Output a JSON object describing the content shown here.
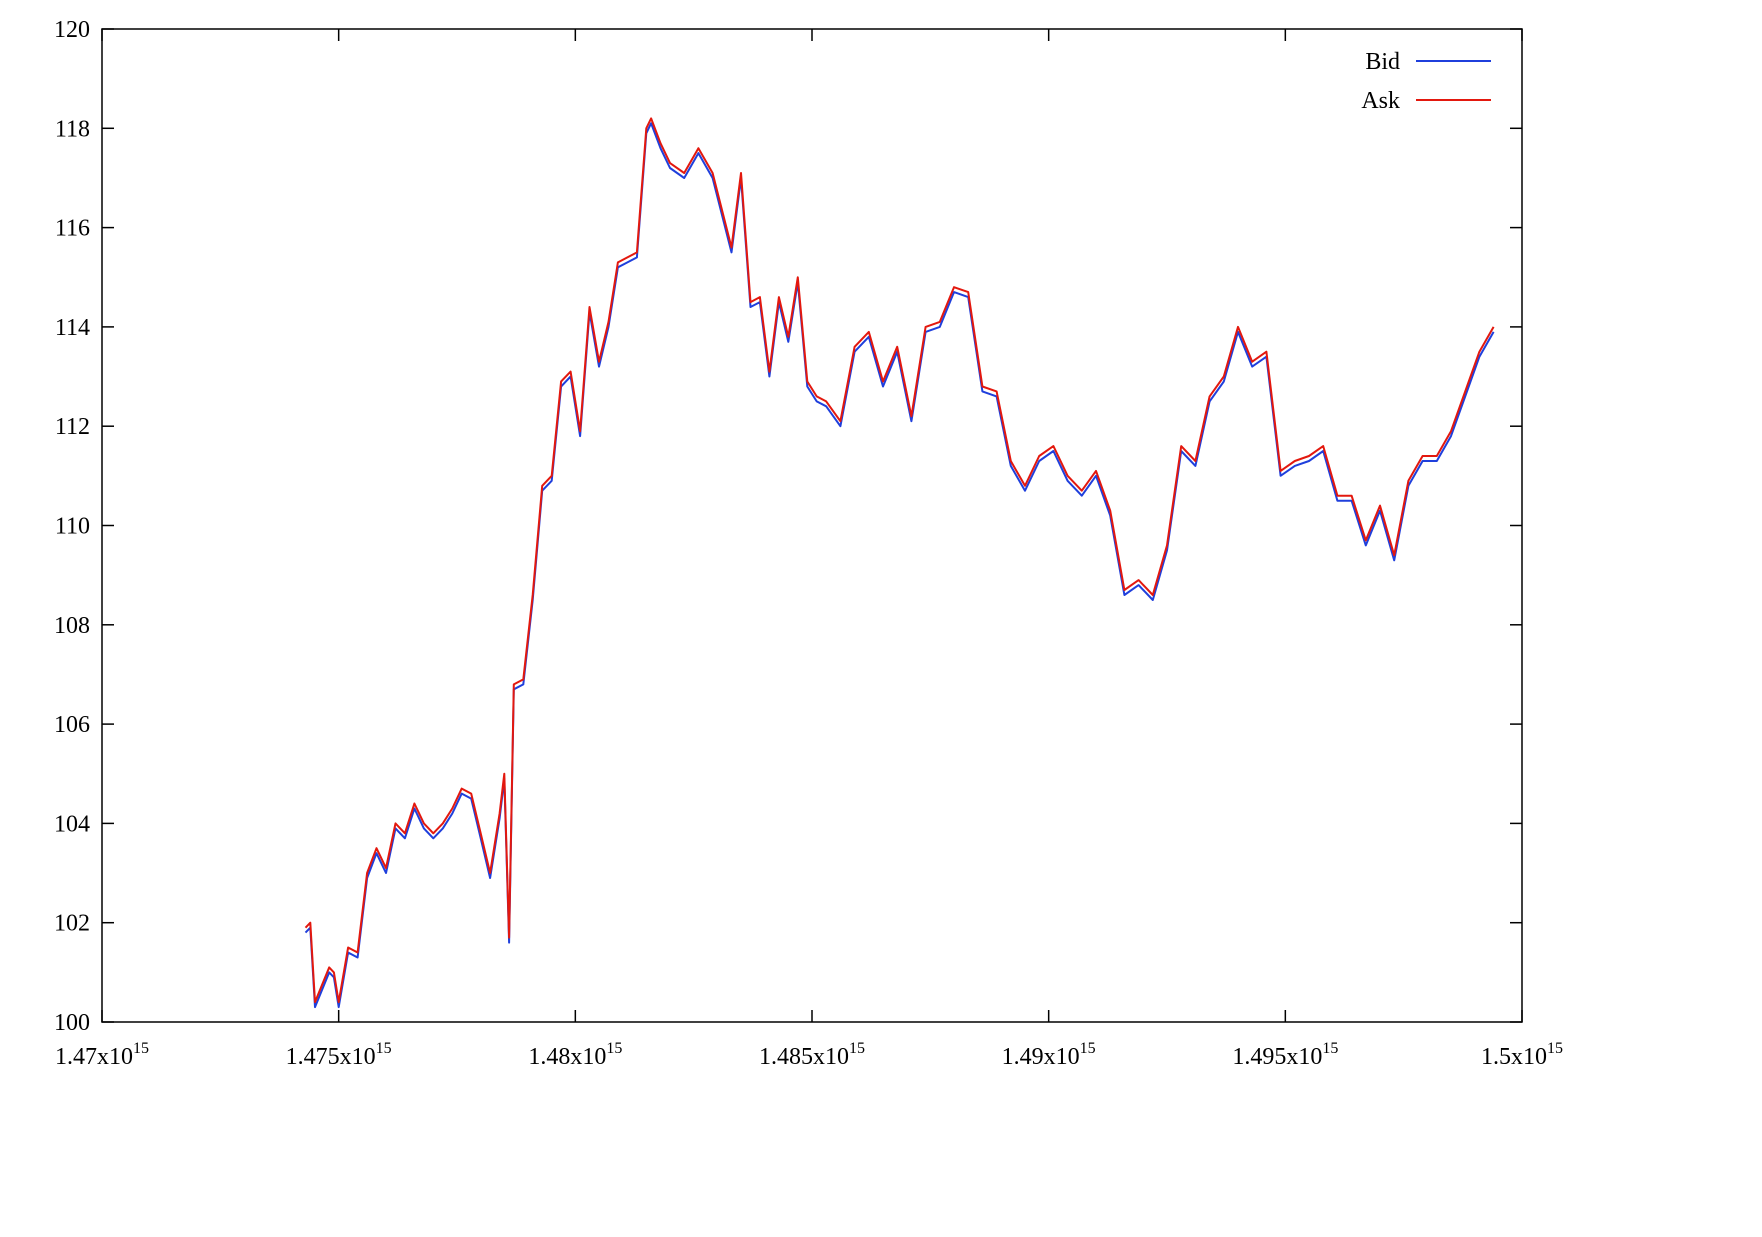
{
  "chart_data": {
    "type": "line",
    "title": "",
    "xlabel": "",
    "ylabel": "",
    "xlim": [
      1470000000000000.0,
      1500000000000000.0
    ],
    "ylim": [
      100,
      120
    ],
    "x_ticks": [
      {
        "value": 1470000000000000.0,
        "mantissa": "1.47",
        "exp": "15"
      },
      {
        "value": 1475000000000000.0,
        "mantissa": "1.475",
        "exp": "15"
      },
      {
        "value": 1480000000000000.0,
        "mantissa": "1.48",
        "exp": "15"
      },
      {
        "value": 1485000000000000.0,
        "mantissa": "1.485",
        "exp": "15"
      },
      {
        "value": 1490000000000000.0,
        "mantissa": "1.49",
        "exp": "15"
      },
      {
        "value": 1495000000000000.0,
        "mantissa": "1.495",
        "exp": "15"
      },
      {
        "value": 1500000000000000.0,
        "mantissa": "1.5",
        "exp": "15"
      }
    ],
    "y_ticks": [
      100,
      102,
      104,
      106,
      108,
      110,
      112,
      114,
      116,
      118,
      120
    ],
    "grid": false,
    "legend_position": "top-right",
    "x": [
      1474300000000000.0,
      1474400000000000.0,
      1474500000000000.0,
      1474800000000000.0,
      1474900000000000.0,
      1475000000000000.0,
      1475200000000000.0,
      1475400000000000.0,
      1475600000000000.0,
      1475800000000000.0,
      1476000000000000.0,
      1476200000000000.0,
      1476400000000000.0,
      1476600000000000.0,
      1476800000000000.0,
      1477000000000000.0,
      1477200000000000.0,
      1477400000000000.0,
      1477600000000000.0,
      1477800000000000.0,
      1478000000000000.0,
      1478200000000000.0,
      1478400000000000.0,
      1478500000000000.0,
      1478600000000000.0,
      1478700000000000.0,
      1478900000000000.0,
      1479100000000000.0,
      1479300000000000.0,
      1479500000000000.0,
      1479700000000000.0,
      1479900000000000.0,
      1480100000000000.0,
      1480300000000000.0,
      1480500000000000.0,
      1480700000000000.0,
      1480900000000000.0,
      1481100000000000.0,
      1481300000000000.0,
      1481500000000000.0,
      1481600000000000.0,
      1481800000000000.0,
      1482000000000000.0,
      1482300000000000.0,
      1482600000000000.0,
      1482900000000000.0,
      1483300000000000.0,
      1483500000000000.0,
      1483700000000000.0,
      1483900000000000.0,
      1484100000000000.0,
      1484300000000000.0,
      1484500000000000.0,
      1484700000000000.0,
      1484900000000000.0,
      1485100000000000.0,
      1485300000000000.0,
      1485600000000000.0,
      1485900000000000.0,
      1486200000000000.0,
      1486500000000000.0,
      1486800000000000.0,
      1487100000000000.0,
      1487400000000000.0,
      1487700000000000.0,
      1488000000000000.0,
      1488300000000000.0,
      1488600000000000.0,
      1488900000000000.0,
      1489200000000000.0,
      1489500000000000.0,
      1489800000000000.0,
      1490100000000000.0,
      1490400000000000.0,
      1490700000000000.0,
      1491000000000000.0,
      1491300000000000.0,
      1491600000000000.0,
      1491900000000000.0,
      1492200000000000.0,
      1492500000000000.0,
      1492800000000000.0,
      1493100000000000.0,
      1493400000000000.0,
      1493700000000000.0,
      1494000000000000.0,
      1494300000000000.0,
      1494600000000000.0,
      1494900000000000.0,
      1495200000000000.0,
      1495500000000000.0,
      1495800000000000.0,
      1496100000000000.0,
      1496400000000000.0,
      1496700000000000.0,
      1497000000000000.0,
      1497300000000000.0,
      1497600000000000.0,
      1497900000000000.0,
      1498200000000000.0,
      1498500000000000.0,
      1498800000000000.0,
      1499100000000000.0,
      1499400000000000.0
    ],
    "series": [
      {
        "name": "Bid",
        "color": "#1f3fdc",
        "values": [
          101.8,
          101.9,
          100.3,
          101.0,
          100.9,
          100.3,
          101.4,
          101.3,
          102.9,
          103.4,
          103.0,
          103.9,
          103.7,
          104.3,
          103.9,
          103.7,
          103.9,
          104.2,
          104.6,
          104.5,
          103.7,
          102.9,
          104.1,
          104.9,
          101.6,
          106.7,
          106.8,
          108.5,
          110.7,
          110.9,
          112.8,
          113.0,
          111.8,
          114.3,
          113.2,
          114.0,
          115.2,
          115.3,
          115.4,
          117.9,
          118.1,
          117.6,
          117.2,
          117.0,
          117.5,
          117.0,
          115.5,
          117.0,
          114.4,
          114.5,
          113.0,
          114.5,
          113.7,
          114.9,
          112.8,
          112.5,
          112.4,
          112.0,
          113.5,
          113.8,
          112.8,
          113.5,
          112.1,
          113.9,
          114.0,
          114.7,
          114.6,
          112.7,
          112.6,
          111.2,
          110.7,
          111.3,
          111.5,
          110.9,
          110.6,
          111.0,
          110.2,
          108.6,
          108.8,
          108.5,
          109.5,
          111.5,
          111.2,
          112.5,
          112.9,
          113.9,
          113.2,
          113.4,
          111.0,
          111.2,
          111.3,
          111.5,
          110.5,
          110.5,
          109.6,
          110.3,
          109.3,
          110.8,
          111.3,
          111.3,
          111.8,
          112.6,
          113.4,
          113.9
        ]
      },
      {
        "name": "Ask",
        "color": "#e3180e",
        "values": [
          101.9,
          102.0,
          100.4,
          101.1,
          101.0,
          100.4,
          101.5,
          101.4,
          103.0,
          103.5,
          103.1,
          104.0,
          103.8,
          104.4,
          104.0,
          103.8,
          104.0,
          104.3,
          104.7,
          104.6,
          103.8,
          103.0,
          104.2,
          105.0,
          101.7,
          106.8,
          106.9,
          108.6,
          110.8,
          111.0,
          112.9,
          113.1,
          111.9,
          114.4,
          113.3,
          114.1,
          115.3,
          115.4,
          115.5,
          118.0,
          118.2,
          117.7,
          117.3,
          117.1,
          117.6,
          117.1,
          115.6,
          117.1,
          114.5,
          114.6,
          113.1,
          114.6,
          113.8,
          115.0,
          112.9,
          112.6,
          112.5,
          112.1,
          113.6,
          113.9,
          112.9,
          113.6,
          112.2,
          114.0,
          114.1,
          114.8,
          114.7,
          112.8,
          112.7,
          111.3,
          110.8,
          111.4,
          111.6,
          111.0,
          110.7,
          111.1,
          110.3,
          108.7,
          108.9,
          108.6,
          109.6,
          111.6,
          111.3,
          112.6,
          113.0,
          114.0,
          113.3,
          113.5,
          111.1,
          111.3,
          111.4,
          111.6,
          110.6,
          110.6,
          109.7,
          110.4,
          109.4,
          110.9,
          111.4,
          111.4,
          111.9,
          112.7,
          113.5,
          114.0
        ]
      }
    ]
  }
}
